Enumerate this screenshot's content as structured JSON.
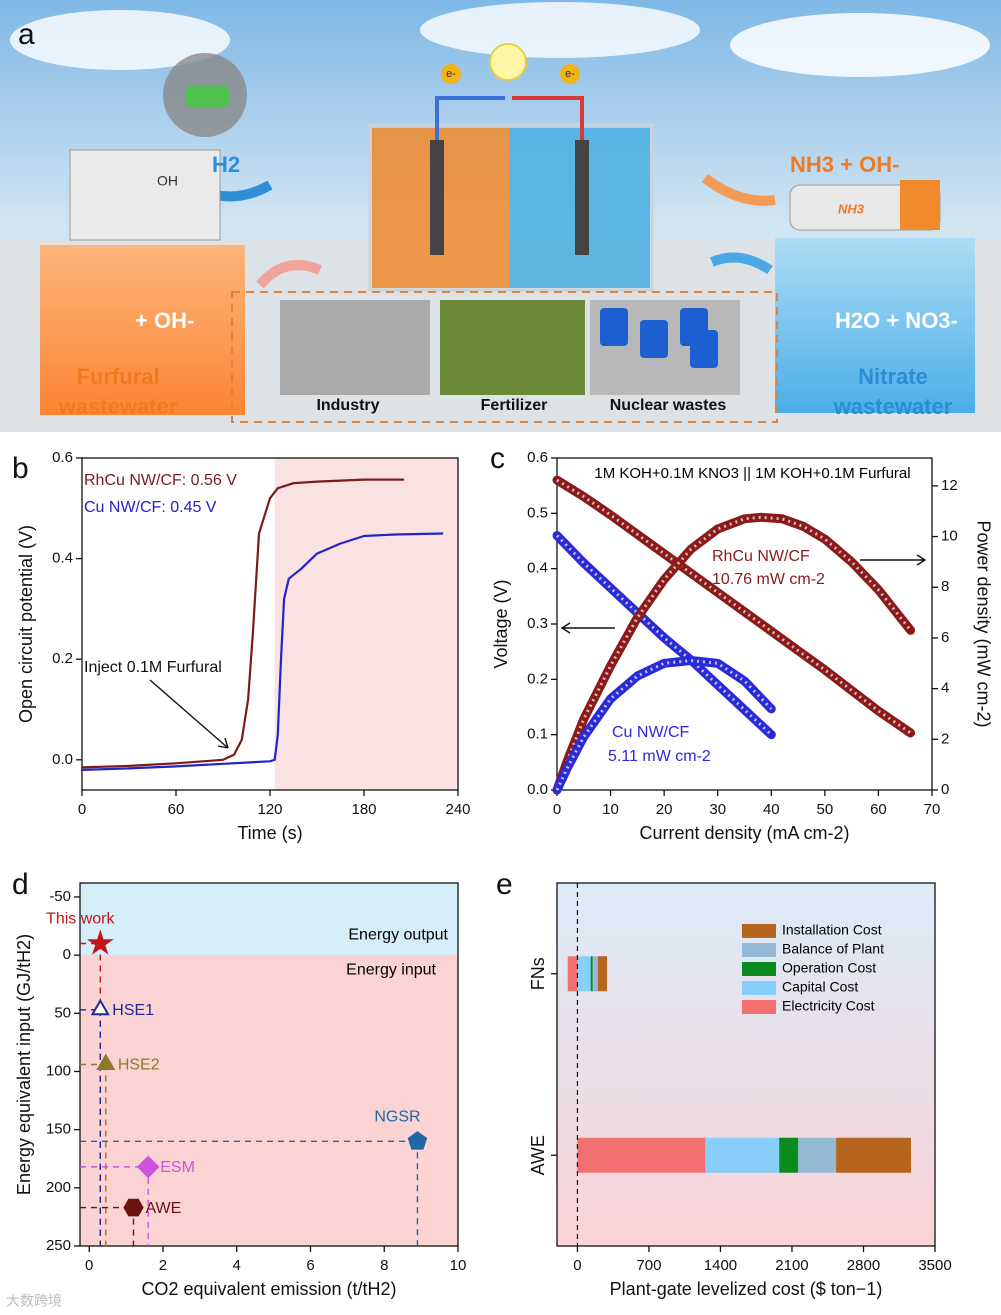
{
  "panel_a": {
    "label": "a",
    "h2": "H2",
    "oh_molecule": "OH",
    "nh3_right": "NH3 + OH-",
    "nh3_truck": "NH3",
    "furfural_plus": "+ OH-",
    "nitrate_plus": "H2O + NO3-",
    "electron": [
      "e-",
      "e-"
    ],
    "furfural": [
      "Furfural",
      "wastewater"
    ],
    "nitrate": [
      "Nitrate",
      "wastewater"
    ],
    "sources": [
      "Industry",
      "Fertilizer",
      "Nuclear wastes"
    ]
  },
  "watermark": "大数跨境",
  "chart_data": [
    {
      "type": "line",
      "panel": "b",
      "xlabel": "Time (s)",
      "ylabel": "Open circuit potential (V)",
      "xlim": [
        0,
        240
      ],
      "xticks": [
        0,
        60,
        120,
        180,
        240
      ],
      "ylim": [
        -0.06,
        0.6
      ],
      "yticks": [
        {
          "value": 0,
          "label": "0.0"
        },
        {
          "value": 0.2,
          "label": "0.2"
        },
        {
          "value": 0.4,
          "label": "0.4"
        },
        {
          "value": 0.6,
          "label": "0.6"
        }
      ],
      "shaded_region": [
        123,
        240
      ],
      "shade_color": "#fbe2e2",
      "annotations": [
        "RhCu NW/CF: 0.56 V",
        "Cu NW/CF: 0.45 V",
        "Inject 0.1M Furfural"
      ],
      "series": [
        {
          "color": "#7a1c1c",
          "x": [
            0,
            30,
            60,
            90,
            97,
            102,
            106,
            109,
            111,
            113,
            116,
            120,
            125,
            135,
            150,
            180,
            205
          ],
          "values": [
            -0.015,
            -0.012,
            -0.007,
            0.0,
            0.01,
            0.04,
            0.12,
            0.25,
            0.35,
            0.45,
            0.48,
            0.52,
            0.54,
            0.55,
            0.553,
            0.557,
            0.557
          ]
        },
        {
          "color": "#2323c8",
          "x": [
            0,
            30,
            60,
            90,
            120,
            123,
            125,
            127,
            129,
            132,
            140,
            150,
            165,
            180,
            200,
            230
          ],
          "values": [
            -0.02,
            -0.017,
            -0.013,
            -0.008,
            -0.003,
            0.0,
            0.05,
            0.2,
            0.32,
            0.36,
            0.38,
            0.41,
            0.43,
            0.445,
            0.448,
            0.45
          ]
        }
      ]
    },
    {
      "type": "line",
      "panel": "c",
      "title": "1M KOH+0.1M KNO3 || 1M KOH+0.1M Furfural",
      "xlabel": "Current density (mA cm-2)",
      "ylabel": "Voltage (V)",
      "y2label": "Power density (mW cm-2)",
      "xlim": [
        0,
        70
      ],
      "xticks": [
        0,
        10,
        20,
        30,
        40,
        50,
        60,
        70
      ],
      "ylim": [
        0,
        0.6
      ],
      "yticks": [
        {
          "value": 0,
          "label": "0.0"
        },
        0.1,
        0.2,
        0.3,
        0.4,
        0.5,
        0.6
      ],
      "y2lim": [
        0,
        13.1
      ],
      "y2ticks": [
        0,
        2,
        4,
        6,
        8,
        10,
        12
      ],
      "annotations": [
        "RhCu NW/CF",
        "10.76 mW cm-2",
        "Cu NW/CF",
        "5.11 mW cm-2"
      ],
      "series": [
        {
          "color": "#8b1a1a",
          "x": [
            0,
            5,
            10,
            15,
            20,
            25,
            30,
            35,
            40,
            45,
            50,
            55,
            60,
            66
          ],
          "values": [
            0.56,
            0.53,
            0.497,
            0.462,
            0.427,
            0.392,
            0.357,
            0.322,
            0.287,
            0.252,
            0.217,
            0.18,
            0.143,
            0.103
          ]
        },
        {
          "color": "#2a2ad8",
          "x": [
            0,
            5,
            10,
            15,
            20,
            25,
            30,
            35,
            40
          ],
          "values": [
            0.46,
            0.41,
            0.365,
            0.32,
            0.275,
            0.235,
            0.19,
            0.145,
            0.1
          ]
        },
        {
          "color": "#8b1a1a",
          "axis": "y2",
          "x": [
            0,
            2,
            5,
            10,
            15,
            20,
            25,
            30,
            35,
            38,
            42,
            46,
            50,
            55,
            60,
            66
          ],
          "values": [
            0,
            1.2,
            2.8,
            4.9,
            6.8,
            8.3,
            9.5,
            10.3,
            10.7,
            10.76,
            10.7,
            10.4,
            9.9,
            9.0,
            7.9,
            6.3
          ]
        },
        {
          "color": "#2a2ad8",
          "axis": "y2",
          "x": [
            0,
            2,
            5,
            10,
            15,
            20,
            25,
            30,
            35,
            40
          ],
          "values": [
            0,
            0.9,
            2.1,
            3.6,
            4.5,
            5.0,
            5.11,
            5.0,
            4.3,
            3.2
          ]
        }
      ]
    },
    {
      "type": "scatter",
      "panel": "d",
      "xlabel": "CO2 equivalent emission (t/tH2)",
      "ylabel": "Energy equivalent input (GJ/tH2)",
      "xlim": [
        -0.25,
        10
      ],
      "xticks": [
        0,
        2,
        4,
        6,
        8,
        10
      ],
      "ylim": [
        -62,
        250
      ],
      "y_inverted": true,
      "yticks": [
        -50,
        0,
        50,
        100,
        150,
        200,
        250
      ],
      "regions": [
        "Energy output",
        "Energy input"
      ],
      "region_colors": [
        "#d6eef9",
        "#fbd3d3"
      ],
      "points": [
        {
          "name": "This work",
          "x": 0.3,
          "y": -10,
          "color": "#c01818",
          "marker": "star"
        },
        {
          "name": "HSE1",
          "x": 0.3,
          "y": 47,
          "color": "#1e2a9c",
          "marker": "triangle-open"
        },
        {
          "name": "HSE2",
          "x": 0.45,
          "y": 94,
          "color": "#8c7a28",
          "marker": "triangle"
        },
        {
          "name": "NGSR",
          "x": 8.9,
          "y": 160,
          "color": "#1f67a5",
          "marker": "pentagon"
        },
        {
          "name": "ESM",
          "x": 1.6,
          "y": 182,
          "color": "#d050e0",
          "marker": "diamond"
        },
        {
          "name": "AWE",
          "x": 1.2,
          "y": 217,
          "color": "#6b1212",
          "marker": "hexagon"
        }
      ]
    },
    {
      "type": "stacked-bar",
      "panel": "e",
      "orientation": "horizontal",
      "xlabel": "Plant-gate levelized cost ($ ton−1)",
      "xlim": [
        -200,
        3500
      ],
      "xticks": [
        0,
        700,
        1400,
        2100,
        2800,
        3500
      ],
      "categories": [
        "FNs",
        "AWE"
      ],
      "legend": "upper right",
      "zero_line": true,
      "series": [
        {
          "name": "Electricity Cost",
          "color": "#f27070",
          "values": [
            -95,
            1252
          ]
        },
        {
          "name": "Capital Cost",
          "color": "#87cefa",
          "values": [
            130,
            723
          ]
        },
        {
          "name": "Operation Cost",
          "color": "#0b8a1e",
          "values": [
            20,
            186
          ]
        },
        {
          "name": "Balance of Plant",
          "color": "#94b9d4",
          "values": [
            50,
            371
          ]
        },
        {
          "name": "Installation Cost",
          "color": "#b5651d",
          "values": [
            90,
            733
          ]
        }
      ]
    }
  ]
}
